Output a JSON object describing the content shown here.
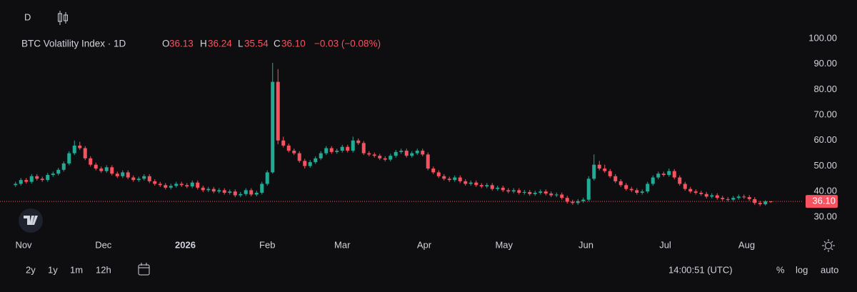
{
  "toolbar": {
    "interval": "D"
  },
  "chart_data": {
    "type": "candlestick",
    "header": {
      "symbol": "BTC Volatility Index · 1D",
      "o_key": "O",
      "o": "36.13",
      "h_key": "H",
      "h": "36.24",
      "l_key": "L",
      "l": "35.54",
      "c_key": "C",
      "c": "36.10",
      "change": "−0.03 (−0.08%)"
    },
    "last_price_label": "36.10",
    "up_color": "#22ab94",
    "down_color": "#f7525f",
    "log": false,
    "grid": false,
    "xlim": [
      -2.9,
      147.1
    ],
    "xticks": [
      {
        "value": 1.5,
        "label": "Nov"
      },
      {
        "value": 16.4,
        "label": "Dec"
      },
      {
        "value": 31.7,
        "label": "2026"
      },
      {
        "value": 47,
        "label": "Feb"
      },
      {
        "value": 61,
        "label": "Mar"
      },
      {
        "value": 76.3,
        "label": "Apr"
      },
      {
        "value": 91.2,
        "label": "May"
      },
      {
        "value": 106.5,
        "label": "Jun"
      },
      {
        "value": 121.3,
        "label": "Jul"
      },
      {
        "value": 136.5,
        "label": "Aug"
      }
    ],
    "ylim": [
      22.7,
      103.9
    ],
    "yticks": [
      {
        "value": 30,
        "label": "30.00"
      },
      {
        "value": 40,
        "label": "40.00"
      },
      {
        "value": 50,
        "label": "50.00"
      },
      {
        "value": 60,
        "label": "60.00"
      },
      {
        "value": 70,
        "label": "70.00"
      },
      {
        "value": 80,
        "label": "80.00"
      },
      {
        "value": 90,
        "label": "90.00"
      },
      {
        "value": 100,
        "label": "100.00"
      }
    ],
    "candles": [
      [
        42.5,
        43.8,
        41.8,
        43
      ],
      [
        43,
        45.3,
        42.3,
        44.5
      ],
      [
        44.5,
        45.3,
        43.1,
        43.8
      ],
      [
        43.8,
        46.8,
        43.1,
        46
      ],
      [
        46,
        46.8,
        44.3,
        45
      ],
      [
        45,
        45.8,
        43.8,
        44.5
      ],
      [
        44.5,
        47.3,
        43.8,
        46.5
      ],
      [
        46.5,
        47.8,
        45.8,
        47
      ],
      [
        47,
        49.3,
        46.3,
        48.5
      ],
      [
        48.5,
        51.8,
        47.8,
        51
      ],
      [
        51,
        55.8,
        50.3,
        55
      ],
      [
        55,
        60,
        54.3,
        58
      ],
      [
        58,
        59.5,
        56.3,
        57
      ],
      [
        57,
        57.8,
        52.3,
        53
      ],
      [
        53,
        53.8,
        49.8,
        50.5
      ],
      [
        50.5,
        51.3,
        48.3,
        49
      ],
      [
        49,
        49.8,
        47.3,
        48
      ],
      [
        48,
        50.3,
        47.3,
        49.5
      ],
      [
        49.5,
        50.3,
        46.3,
        47
      ],
      [
        47,
        47.8,
        45.3,
        46
      ],
      [
        46,
        48.3,
        45.3,
        47.5
      ],
      [
        47.5,
        48.3,
        44.8,
        45.5
      ],
      [
        45.5,
        46.3,
        43.8,
        44.5
      ],
      [
        44.5,
        45.8,
        43.8,
        45
      ],
      [
        45,
        46.8,
        44.3,
        46
      ],
      [
        46,
        46.8,
        43.3,
        44
      ],
      [
        44,
        44.8,
        42.3,
        43
      ],
      [
        43,
        43.8,
        41.8,
        42.5
      ],
      [
        42.5,
        43.3,
        40.8,
        41.5
      ],
      [
        41.5,
        43,
        40.8,
        42.2
      ],
      [
        42.2,
        43.8,
        41.5,
        43
      ],
      [
        43,
        43.8,
        41.8,
        42.5
      ],
      [
        42.5,
        43.3,
        41.3,
        42
      ],
      [
        42,
        44.3,
        41.3,
        43.5
      ],
      [
        43.5,
        44.3,
        40.8,
        41.5
      ],
      [
        41.5,
        42.3,
        39.8,
        40.5
      ],
      [
        40.5,
        41.8,
        39.8,
        41
      ],
      [
        41,
        41.8,
        39.3,
        40
      ],
      [
        40,
        41.3,
        39.3,
        40.5
      ],
      [
        40.5,
        41.3,
        38.8,
        39.5
      ],
      [
        39.5,
        40.8,
        38.8,
        40
      ],
      [
        40,
        40.8,
        37.8,
        38.5
      ],
      [
        38.5,
        39.8,
        37.8,
        39
      ],
      [
        39,
        41.3,
        38.3,
        40.5
      ],
      [
        40.5,
        41.3,
        38.1,
        38.8
      ],
      [
        38.8,
        40.3,
        38.1,
        39.5
      ],
      [
        39.5,
        43.8,
        38.8,
        43
      ],
      [
        43,
        48.3,
        42.3,
        47.5
      ],
      [
        47.5,
        90.5,
        47,
        83
      ],
      [
        83,
        88,
        58.5,
        60
      ],
      [
        60,
        61.5,
        57.3,
        58
      ],
      [
        58,
        58.8,
        55.3,
        56
      ],
      [
        56,
        56.8,
        54.3,
        55
      ],
      [
        55,
        55.8,
        51.3,
        52
      ],
      [
        52,
        52.8,
        49,
        50
      ],
      [
        50,
        52.3,
        49.3,
        51.5
      ],
      [
        51.5,
        53.8,
        50.8,
        53
      ],
      [
        53,
        55.8,
        52.3,
        55
      ],
      [
        55,
        57.8,
        54.3,
        57
      ],
      [
        57,
        57.8,
        54.8,
        55.5
      ],
      [
        55.5,
        56.8,
        54.8,
        56
      ],
      [
        56,
        58.3,
        55.3,
        57.5
      ],
      [
        57.5,
        58.3,
        55.3,
        56
      ],
      [
        56,
        61.5,
        55.3,
        60
      ],
      [
        60,
        60.8,
        58.3,
        59
      ],
      [
        59,
        59.8,
        54.3,
        55
      ],
      [
        55,
        55.8,
        53.8,
        54.5
      ],
      [
        54.5,
        55.3,
        53.3,
        54
      ],
      [
        54,
        54.8,
        52.3,
        53
      ],
      [
        53,
        53.8,
        51.8,
        52.5
      ],
      [
        52.5,
        54.8,
        51.8,
        54
      ],
      [
        54,
        56.3,
        53.3,
        55.5
      ],
      [
        55.5,
        56.8,
        54.8,
        56
      ],
      [
        56,
        56.8,
        53.3,
        54
      ],
      [
        54,
        55.8,
        53.3,
        55
      ],
      [
        55,
        56.8,
        54.3,
        56
      ],
      [
        56,
        56.8,
        53.8,
        54.5
      ],
      [
        54.5,
        55.3,
        48.3,
        49
      ],
      [
        49,
        49.8,
        46.8,
        47.5
      ],
      [
        47.5,
        48.3,
        45.3,
        46
      ],
      [
        46,
        46.8,
        44.3,
        45
      ],
      [
        45,
        45.8,
        43.8,
        44.5
      ],
      [
        44.5,
        46.3,
        43.8,
        45.5
      ],
      [
        45.5,
        46.3,
        43.3,
        44
      ],
      [
        44,
        44.8,
        42.3,
        43
      ],
      [
        43,
        44.3,
        42.3,
        43.5
      ],
      [
        43.5,
        44.3,
        41.8,
        42.5
      ],
      [
        42.5,
        43.3,
        41.3,
        42
      ],
      [
        42,
        43.3,
        41.3,
        42.5
      ],
      [
        42.5,
        43.3,
        40.3,
        41
      ],
      [
        41,
        42.3,
        40.3,
        41.5
      ],
      [
        41.5,
        42.3,
        39.8,
        40.5
      ],
      [
        40.5,
        41.3,
        39.3,
        40
      ],
      [
        40,
        41.3,
        39.3,
        40.5
      ],
      [
        40.5,
        41.3,
        38.8,
        39.5
      ],
      [
        39.5,
        40.6,
        38.8,
        39.8
      ],
      [
        39.8,
        40.6,
        38.3,
        39
      ],
      [
        39,
        40.3,
        38.3,
        39.5
      ],
      [
        39.5,
        40.8,
        38.8,
        40
      ],
      [
        40,
        40.8,
        38.5,
        39.2
      ],
      [
        39.2,
        40,
        37.8,
        38.5
      ],
      [
        38.5,
        39.6,
        37.8,
        38.8
      ],
      [
        38.8,
        39.6,
        36.8,
        37.5
      ],
      [
        37.5,
        38.3,
        35.3,
        36
      ],
      [
        36,
        36.8,
        34.8,
        35.5
      ],
      [
        35.5,
        37,
        34.8,
        36.2
      ],
      [
        36.2,
        37.6,
        35.5,
        36.8
      ],
      [
        36.8,
        46,
        36.1,
        45
      ],
      [
        45,
        54.5,
        44.3,
        50.5
      ],
      [
        50.5,
        52,
        48.3,
        49
      ],
      [
        49,
        50.5,
        47.3,
        48
      ],
      [
        48,
        48.8,
        45.3,
        46
      ],
      [
        46,
        46.8,
        43.3,
        44
      ],
      [
        44,
        44.8,
        41.8,
        42.5
      ],
      [
        42.5,
        43.3,
        40.3,
        41
      ],
      [
        41,
        41.8,
        39.8,
        40.5
      ],
      [
        40.5,
        41.3,
        38.8,
        39.5
      ],
      [
        39.5,
        40.8,
        38.8,
        40
      ],
      [
        40,
        43.8,
        39.3,
        43
      ],
      [
        43,
        46.3,
        42.3,
        45.5
      ],
      [
        45.5,
        47.8,
        44.8,
        47
      ],
      [
        47,
        47.8,
        45.8,
        46.5
      ],
      [
        46.5,
        49,
        45.8,
        48
      ],
      [
        48,
        48.8,
        44.8,
        45.5
      ],
      [
        45.5,
        46.3,
        42.3,
        43
      ],
      [
        43,
        43.8,
        40.3,
        41
      ],
      [
        41,
        41.8,
        39.3,
        40
      ],
      [
        40,
        40.8,
        38.8,
        39.5
      ],
      [
        39.5,
        40.3,
        38.3,
        39
      ],
      [
        39,
        39.8,
        37.3,
        38
      ],
      [
        38,
        39.3,
        37.3,
        38.5
      ],
      [
        38.5,
        39.3,
        36.8,
        37.5
      ],
      [
        37.5,
        38.3,
        36.3,
        37
      ],
      [
        37,
        37.8,
        36.1,
        36.8
      ],
      [
        36.8,
        38.3,
        36.1,
        37.5
      ],
      [
        37.5,
        38.8,
        36.8,
        38
      ],
      [
        38,
        38.8,
        37.1,
        37.8
      ],
      [
        37.8,
        38.6,
        36.3,
        37
      ],
      [
        37,
        37.8,
        34.8,
        35.5
      ],
      [
        35.5,
        36.3,
        34.3,
        35
      ],
      [
        35,
        36.6,
        34.5,
        36.13
      ],
      [
        36.13,
        36.24,
        35.54,
        36.1
      ]
    ]
  },
  "bottom_bar": {
    "ranges": [
      "2y",
      "1y",
      "1m",
      "12h"
    ],
    "clock": "14:00:51 (UTC)",
    "percent": "%",
    "log": "log",
    "auto": "auto"
  }
}
